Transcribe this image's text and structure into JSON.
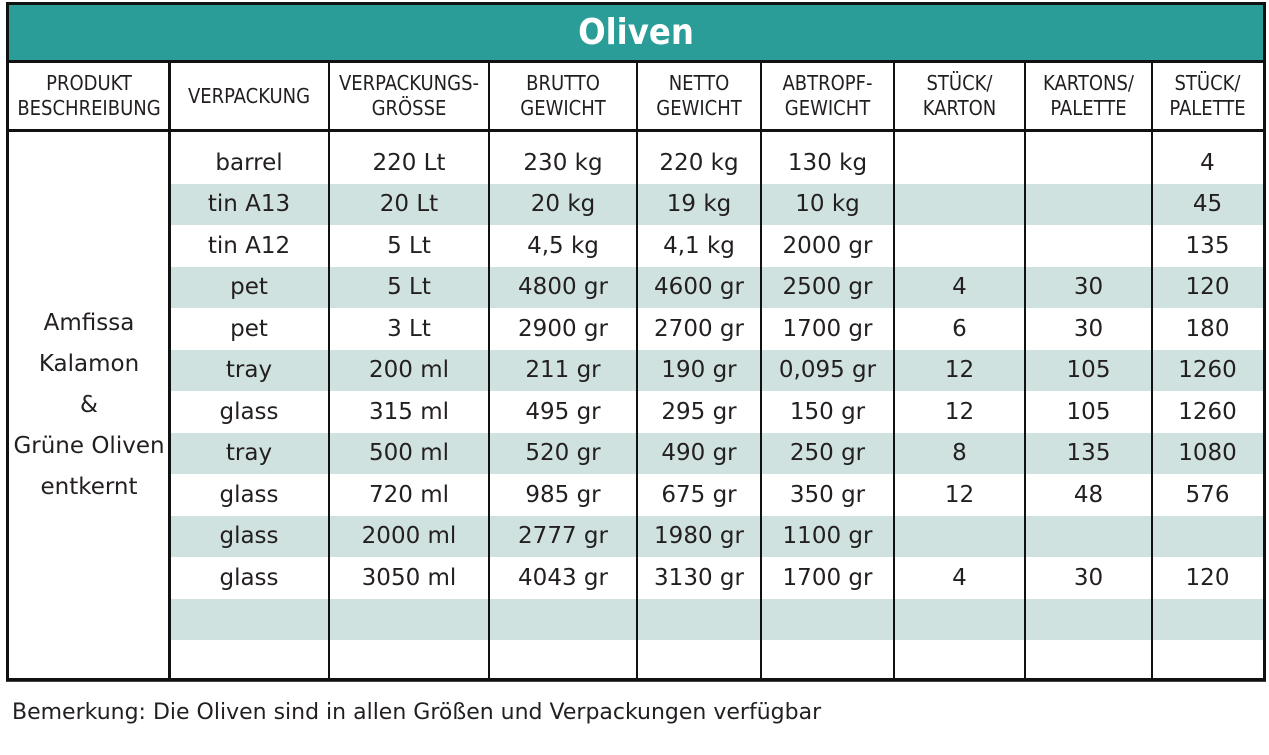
{
  "title": "Oliven",
  "columns": [
    "PRODUKT\nBESCHREIBUNG",
    "VERPACKUNG",
    "VERPACKUNGS-\nGRÖSSE",
    "BRUTTO\nGEWICHT",
    "NETTO\nGEWICHT",
    "ABTROPF-\nGEWICHT",
    "STÜCK/\nKARTON",
    "KARTONS/\nPALETTE",
    "STÜCK/\nPALETTE"
  ],
  "product": [
    "Amfissa",
    "Kalamon",
    "&",
    "Grüne Oliven",
    "entkernt"
  ],
  "rows": [
    [
      "barrel",
      "220 Lt",
      "230 kg",
      "220 kg",
      "130 kg",
      "",
      "",
      "4"
    ],
    [
      "tin A13",
      "20 Lt",
      "20 kg",
      "19 kg",
      "10 kg",
      "",
      "",
      "45"
    ],
    [
      "tin A12",
      "5 Lt",
      "4,5 kg",
      "4,1 kg",
      "2000 gr",
      "",
      "",
      "135"
    ],
    [
      "pet",
      "5 Lt",
      "4800 gr",
      "4600 gr",
      "2500 gr",
      "4",
      "30",
      "120"
    ],
    [
      "pet",
      "3 Lt",
      "2900 gr",
      "2700 gr",
      "1700 gr",
      "6",
      "30",
      "180"
    ],
    [
      "tray",
      "200 ml",
      "211 gr",
      "190 gr",
      "0,095 gr",
      "12",
      "105",
      "1260"
    ],
    [
      "glass",
      "315 ml",
      "495 gr",
      "295 gr",
      "150 gr",
      "12",
      "105",
      "1260"
    ],
    [
      "tray",
      "500 ml",
      "520 gr",
      "490 gr",
      "250 gr",
      "8",
      "135",
      "1080"
    ],
    [
      "glass",
      "720 ml",
      "985 gr",
      "675 gr",
      "350 gr",
      "12",
      "48",
      "576"
    ],
    [
      "glass",
      "2000 ml",
      "2777 gr",
      "1980 gr",
      "1100 gr",
      "",
      "",
      ""
    ],
    [
      "glass",
      "3050 ml",
      "4043 gr",
      "3130 gr",
      "1700 gr",
      "4",
      "30",
      "120"
    ],
    [
      "",
      "",
      "",
      "",
      "",
      "",
      "",
      ""
    ],
    [
      "",
      "",
      "",
      "",
      "",
      "",
      "",
      ""
    ]
  ],
  "colors": {
    "header_bg": "#2a9d98",
    "row_shade": "#cfe2df"
  },
  "note": "Bemerkung: Die Oliven sind  in allen Größen und Verpackungen verfügbar"
}
